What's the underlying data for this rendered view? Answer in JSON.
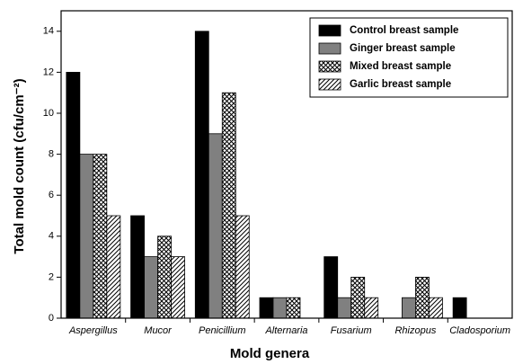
{
  "chart_data": {
    "type": "bar",
    "xlabel": "Mold genera",
    "ylabel": "Total mold count (cfu/cm⁻²)",
    "categories": [
      "Aspergillus",
      "Mucor",
      "Penicillium",
      "Alternaria",
      "Fusarium",
      "Rhizopus",
      "Cladosporium"
    ],
    "series": [
      {
        "name": "Control breast sample",
        "color": "#000000",
        "pattern": "solid",
        "values": [
          12,
          5,
          14,
          1,
          3,
          0,
          1
        ]
      },
      {
        "name": "Ginger breast sample",
        "color": "#808080",
        "pattern": "solid",
        "values": [
          8,
          3,
          9,
          1,
          1,
          1,
          0
        ]
      },
      {
        "name": "Mixed breast sample",
        "color": "#000000",
        "pattern": "crosshatch",
        "values": [
          8,
          4,
          11,
          1,
          2,
          2,
          0
        ]
      },
      {
        "name": "Garlic breast sample",
        "color": "#000000",
        "pattern": "hatch",
        "values": [
          5,
          3,
          5,
          0,
          1,
          1,
          0
        ]
      }
    ],
    "ylim": [
      0,
      15
    ],
    "yticks": [
      0,
      2,
      4,
      6,
      8,
      10,
      12,
      14
    ],
    "legend": "upper right"
  }
}
